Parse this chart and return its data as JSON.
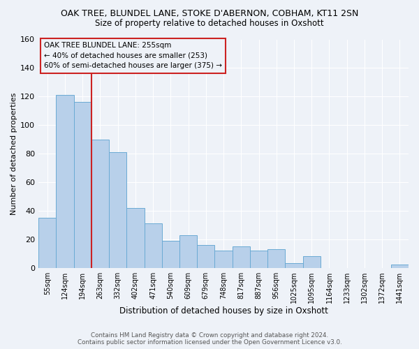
{
  "title": "OAK TREE, BLUNDEL LANE, STOKE D'ABERNON, COBHAM, KT11 2SN",
  "subtitle": "Size of property relative to detached houses in Oxshott",
  "xlabel": "Distribution of detached houses by size in Oxshott",
  "ylabel": "Number of detached properties",
  "bar_labels": [
    "55sqm",
    "124sqm",
    "194sqm",
    "263sqm",
    "332sqm",
    "402sqm",
    "471sqm",
    "540sqm",
    "609sqm",
    "679sqm",
    "748sqm",
    "817sqm",
    "887sqm",
    "956sqm",
    "1025sqm",
    "1095sqm",
    "1164sqm",
    "1233sqm",
    "1302sqm",
    "1372sqm",
    "1441sqm"
  ],
  "bar_values": [
    35,
    121,
    116,
    90,
    81,
    42,
    31,
    19,
    23,
    16,
    12,
    15,
    12,
    13,
    3,
    8,
    0,
    0,
    0,
    0,
    2
  ],
  "bar_color": "#b8d0ea",
  "bar_edge_color": "#6aaad4",
  "ylim": [
    0,
    160
  ],
  "yticks": [
    0,
    20,
    40,
    60,
    80,
    100,
    120,
    140,
    160
  ],
  "vline_position": 2.5,
  "vline_color": "#cc2222",
  "annotation_lines": [
    "OAK TREE BLUNDEL LANE: 255sqm",
    "← 40% of detached houses are smaller (253)",
    "60% of semi-detached houses are larger (375) →"
  ],
  "footer_line1": "Contains HM Land Registry data © Crown copyright and database right 2024.",
  "footer_line2": "Contains public sector information licensed under the Open Government Licence v3.0.",
  "background_color": "#eef2f8",
  "grid_color": "#ffffff"
}
